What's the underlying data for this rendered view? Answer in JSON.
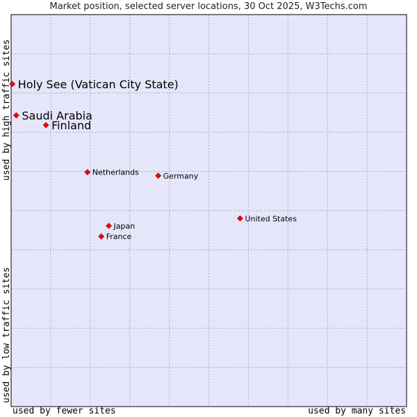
{
  "chart_data": {
    "type": "scatter",
    "title": "Market position, selected server locations, 30 Oct 2025, W3Techs.com",
    "xlabel_left": "used by fewer sites",
    "xlabel_right": "used by many sites",
    "ylabel_top": "used by high traffic sites",
    "ylabel_bottom": "used by low traffic sites",
    "xlim": [
      0,
      100
    ],
    "ylim": [
      0,
      100
    ],
    "grid": true,
    "points": [
      {
        "label": "Holy See (Vatican City State)",
        "x": 0.3,
        "y": 82.3,
        "emphasis": true
      },
      {
        "label": "Saudi Arabia",
        "x": 1.3,
        "y": 74.3,
        "emphasis": true
      },
      {
        "label": "Finland",
        "x": 8.8,
        "y": 71.8,
        "emphasis": true
      },
      {
        "label": "Netherlands",
        "x": 19.3,
        "y": 59.8,
        "emphasis": false
      },
      {
        "label": "Germany",
        "x": 37.2,
        "y": 58.9,
        "emphasis": false
      },
      {
        "label": "United States",
        "x": 57.9,
        "y": 48.0,
        "emphasis": false
      },
      {
        "label": "Japan",
        "x": 24.7,
        "y": 46.1,
        "emphasis": false
      },
      {
        "label": "France",
        "x": 22.8,
        "y": 43.4,
        "emphasis": false
      }
    ]
  },
  "colors": {
    "plot_background": "#e6e6fa",
    "grid": "#a9a9c9",
    "border": "#000000",
    "marker": "#ff0000"
  }
}
